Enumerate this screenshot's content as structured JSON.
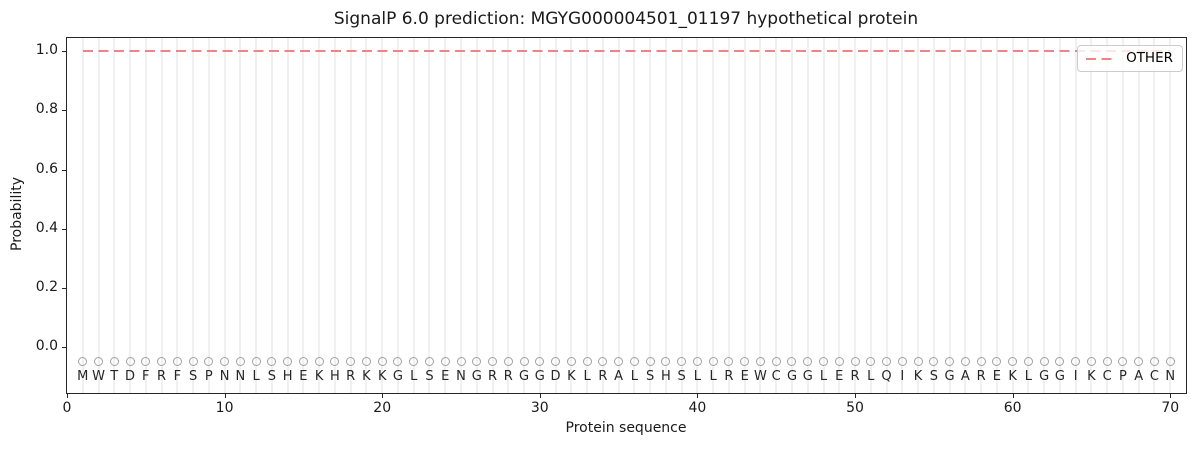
{
  "chart_data": {
    "type": "line",
    "title": "SignalP 6.0 prediction: MGYG000004501_01197 hypothetical protein",
    "xlabel": "Protein sequence",
    "ylabel": "Probability",
    "xlim": [
      0,
      71
    ],
    "ylim": [
      -0.155,
      1.045
    ],
    "x_ticks": [
      0,
      10,
      20,
      30,
      40,
      50,
      60,
      70
    ],
    "y_ticks": [
      0.0,
      0.2,
      0.4,
      0.6,
      0.8,
      1.0
    ],
    "grid": {
      "vertical_per_residue": true,
      "horizontal": false
    },
    "legend": {
      "position": "upper-right",
      "entries": [
        {
          "label": "OTHER",
          "color": "#ec8585",
          "linestyle": "dashed"
        }
      ]
    },
    "series": [
      {
        "name": "OTHER",
        "color": "#ec8585",
        "linestyle": "dashed",
        "x": [
          1,
          2,
          3,
          4,
          5,
          6,
          7,
          8,
          9,
          10,
          11,
          12,
          13,
          14,
          15,
          16,
          17,
          18,
          19,
          20,
          21,
          22,
          23,
          24,
          25,
          26,
          27,
          28,
          29,
          30,
          31,
          32,
          33,
          34,
          35,
          36,
          37,
          38,
          39,
          40,
          41,
          42,
          43,
          44,
          45,
          46,
          47,
          48,
          49,
          50,
          51,
          52,
          53,
          54,
          55,
          56,
          57,
          58,
          59,
          60,
          61,
          62,
          63,
          64,
          65,
          66,
          67,
          68,
          69,
          70
        ],
        "values": [
          1.0,
          1.0,
          1.0,
          1.0,
          1.0,
          1.0,
          1.0,
          1.0,
          1.0,
          1.0,
          1.0,
          1.0,
          1.0,
          1.0,
          1.0,
          1.0,
          1.0,
          1.0,
          1.0,
          1.0,
          1.0,
          1.0,
          1.0,
          1.0,
          1.0,
          1.0,
          1.0,
          1.0,
          1.0,
          1.0,
          1.0,
          1.0,
          1.0,
          1.0,
          1.0,
          1.0,
          1.0,
          1.0,
          1.0,
          1.0,
          1.0,
          1.0,
          1.0,
          1.0,
          1.0,
          1.0,
          1.0,
          1.0,
          1.0,
          1.0,
          1.0,
          1.0,
          1.0,
          1.0,
          1.0,
          1.0,
          1.0,
          1.0,
          1.0,
          1.0,
          1.0,
          1.0,
          1.0,
          1.0,
          1.0,
          1.0,
          1.0,
          1.0,
          1.0,
          1.0
        ]
      }
    ],
    "sequence": "MWTDFRFSPNNLSHEKHRKKGLSENGRRGGDKLRALSHSLLREWCGGLERLQIKSGAREKLGGIKCPACN",
    "sequence_marker": {
      "symbol": "open-circle",
      "y": -0.05,
      "color": "#a0a0a0"
    },
    "sequence_letter_y": -0.1,
    "colors": {
      "grid": "#f0f0f0",
      "spine": "#262626",
      "text": "#262626",
      "other_line": "#ec8585"
    }
  }
}
